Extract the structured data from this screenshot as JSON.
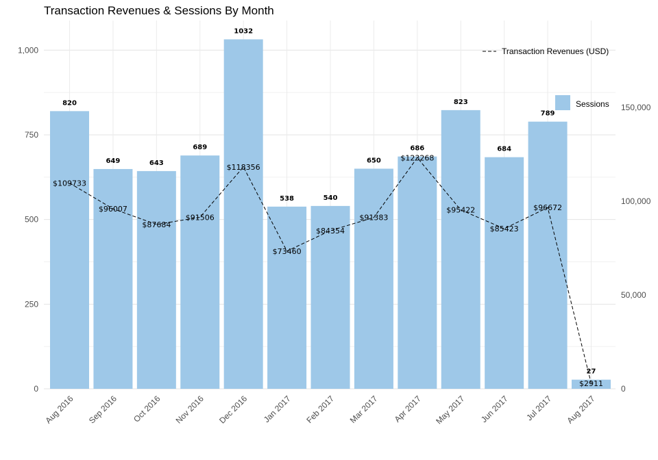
{
  "chart_data": {
    "type": "bar",
    "title": "Transaction Revenues & Sessions By Month",
    "xlabel": "",
    "ylabel": "",
    "categories": [
      "Aug 2016",
      "Sep 2016",
      "Oct 2016",
      "Nov 2016",
      "Dec 2016",
      "Jan 2017",
      "Feb 2017",
      "Mar 2017",
      "Apr 2017",
      "May 2017",
      "Jun 2017",
      "Jul 2017",
      "Aug 2017"
    ],
    "series": [
      {
        "name": "Sessions",
        "type": "bar",
        "axis": "left",
        "color": "#9ec8e8",
        "values": [
          820,
          649,
          643,
          689,
          1032,
          538,
          540,
          650,
          686,
          823,
          684,
          789,
          27
        ]
      },
      {
        "name": "Transaction Revenues (USD)",
        "type": "line",
        "axis": "right",
        "line_style": "dashed",
        "color": "#000000",
        "values": [
          109733,
          96007,
          87684,
          91506,
          118356,
          73460,
          84354,
          91383,
          123268,
          95422,
          85423,
          96672,
          2911
        ],
        "value_labels": [
          "$109733",
          "$96007",
          "$87684",
          "$91506",
          "$118356",
          "$73460",
          "$84354",
          "$91383",
          "$123268",
          "$95422",
          "$85423",
          "$96672",
          "$2911"
        ]
      }
    ],
    "y_left": {
      "ticks": [
        0,
        250,
        500,
        750,
        1000
      ],
      "tick_labels": [
        "0",
        "250",
        "500",
        "750",
        "1,000"
      ],
      "ylim": [
        0,
        1080
      ]
    },
    "y_right": {
      "ticks": [
        0,
        50000,
        100000,
        150000
      ],
      "tick_labels": [
        "0",
        "50,000",
        "100,000",
        "150,000"
      ],
      "ylim": [
        0,
        196000
      ]
    },
    "grid": true,
    "legend": [
      {
        "label": "Transaction Revenues (USD)",
        "kind": "dashed-line",
        "placement": "top-right"
      },
      {
        "label": "Sessions",
        "kind": "filled-box",
        "placement": "right"
      }
    ]
  }
}
